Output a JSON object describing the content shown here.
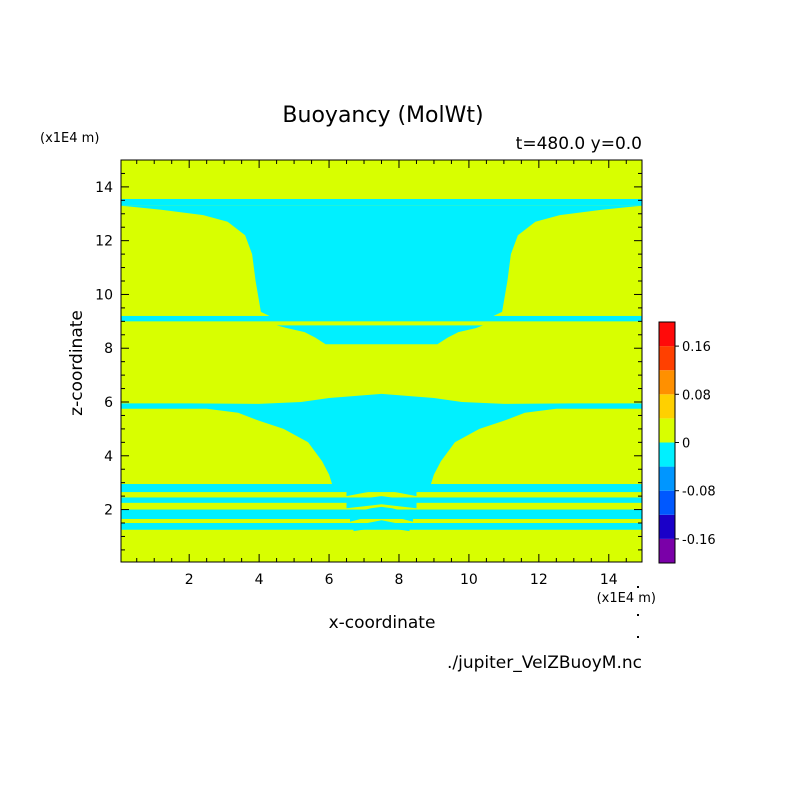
{
  "chart_data": {
    "type": "heatmap",
    "title": "Buoyancy (MolWt)",
    "subtitle": "t=480.0 y=0.0",
    "xlabel": "x-coordinate",
    "ylabel": "z-coordinate",
    "x_unit": "(x1E4 m)",
    "y_unit": "(x1E4 m)",
    "xlim": [
      0.05,
      14.95
    ],
    "ylim": [
      0.05,
      15.0
    ],
    "x_ticks": [
      2,
      4,
      6,
      8,
      10,
      12,
      14
    ],
    "y_ticks": [
      2,
      4,
      6,
      8,
      10,
      12,
      14
    ],
    "source_file": "./jupiter_VelZBuoyM.nc",
    "colorbar": {
      "levels": [
        -0.2,
        -0.16,
        -0.12,
        -0.08,
        -0.04,
        0,
        0.04,
        0.08,
        0.12,
        0.16,
        0.2
      ],
      "colors": [
        "#7a00a8",
        "#1a00c8",
        "#0058ff",
        "#0096ff",
        "#00f0ff",
        "#d8ff00",
        "#ffd000",
        "#ff9000",
        "#ff4000",
        "#ff0a0a",
        "#ffb0b0"
      ],
      "tick_labels": [
        {
          "value": -0.16,
          "label": "-0.16"
        },
        {
          "value": -0.08,
          "label": "-0.08"
        },
        {
          "value": 0,
          "label": "0"
        },
        {
          "value": 0.08,
          "label": "0.08"
        },
        {
          "value": 0.16,
          "label": "0.16"
        }
      ]
    },
    "field": {
      "background_class": "0 to 0.04",
      "background_color": "#d8ff00",
      "negative_class": "-0.04 to 0",
      "negative_color": "#00f0ff",
      "negative_regions": [
        {
          "kind": "band",
          "z": [
            13.3,
            13.55
          ]
        },
        {
          "kind": "polygon",
          "points": [
            [
              0.05,
              13.3
            ],
            [
              1.2,
              13.15
            ],
            [
              2.4,
              12.95
            ],
            [
              3.1,
              12.7
            ],
            [
              3.6,
              12.2
            ],
            [
              3.8,
              11.5
            ],
            [
              3.9,
              10.5
            ],
            [
              4.05,
              9.35
            ],
            [
              4.3,
              9.2
            ],
            [
              10.7,
              9.2
            ],
            [
              10.95,
              9.35
            ],
            [
              11.1,
              10.5
            ],
            [
              11.2,
              11.5
            ],
            [
              11.4,
              12.2
            ],
            [
              11.9,
              12.7
            ],
            [
              12.6,
              12.95
            ],
            [
              13.8,
              13.15
            ],
            [
              14.95,
              13.3
            ]
          ]
        },
        {
          "kind": "band",
          "z": [
            9.0,
            9.2
          ]
        },
        {
          "kind": "polygon",
          "points": [
            [
              4.5,
              8.85
            ],
            [
              10.4,
              8.85
            ],
            [
              10.2,
              8.75
            ],
            [
              9.7,
              8.6
            ],
            [
              9.4,
              8.4
            ],
            [
              9.1,
              8.15
            ],
            [
              5.9,
              8.15
            ],
            [
              5.6,
              8.4
            ],
            [
              5.3,
              8.6
            ],
            [
              4.8,
              8.75
            ]
          ]
        },
        {
          "kind": "polygon",
          "points": [
            [
              0.05,
              5.95
            ],
            [
              2.0,
              5.95
            ],
            [
              4.0,
              5.93
            ],
            [
              5.2,
              6.0
            ],
            [
              6.0,
              6.15
            ],
            [
              7.5,
              6.3
            ],
            [
              9.0,
              6.15
            ],
            [
              9.8,
              6.0
            ],
            [
              11.0,
              5.93
            ],
            [
              13.0,
              5.95
            ],
            [
              14.95,
              5.95
            ],
            [
              14.95,
              5.75
            ],
            [
              12.5,
              5.75
            ],
            [
              11.6,
              5.6
            ],
            [
              11.0,
              5.3
            ],
            [
              10.3,
              5.0
            ],
            [
              9.6,
              4.5
            ],
            [
              9.2,
              3.8
            ],
            [
              9.0,
              3.3
            ],
            [
              8.9,
              2.9
            ],
            [
              6.1,
              2.9
            ],
            [
              6.0,
              3.3
            ],
            [
              5.8,
              3.8
            ],
            [
              5.4,
              4.5
            ],
            [
              4.7,
              5.0
            ],
            [
              4.0,
              5.3
            ],
            [
              3.4,
              5.6
            ],
            [
              2.5,
              5.75
            ],
            [
              0.05,
              5.75
            ]
          ]
        },
        {
          "kind": "band",
          "z": [
            2.65,
            2.95
          ]
        },
        {
          "kind": "band",
          "z": [
            2.25,
            2.45
          ]
        },
        {
          "kind": "band",
          "z": [
            1.65,
            2.0
          ]
        },
        {
          "kind": "band",
          "z": [
            1.25,
            1.5
          ]
        },
        {
          "kind": "polygon",
          "points": [
            [
              6.5,
              2.7
            ],
            [
              7.1,
              2.85
            ],
            [
              7.5,
              2.9
            ],
            [
              7.9,
              2.85
            ],
            [
              8.5,
              2.7
            ],
            [
              8.5,
              2.5
            ],
            [
              7.9,
              2.65
            ],
            [
              7.5,
              2.7
            ],
            [
              7.1,
              2.65
            ],
            [
              6.5,
              2.5
            ]
          ]
        },
        {
          "kind": "polygon",
          "points": [
            [
              6.5,
              2.3
            ],
            [
              7.2,
              2.45
            ],
            [
              7.5,
              2.5
            ],
            [
              7.8,
              2.45
            ],
            [
              8.5,
              2.3
            ],
            [
              8.5,
              2.05
            ],
            [
              7.8,
              2.15
            ],
            [
              7.5,
              2.2
            ],
            [
              7.2,
              2.15
            ],
            [
              6.5,
              2.05
            ]
          ]
        },
        {
          "kind": "polygon",
          "points": [
            [
              6.6,
              1.85
            ],
            [
              7.2,
              2.05
            ],
            [
              7.5,
              2.1
            ],
            [
              7.8,
              2.05
            ],
            [
              8.4,
              1.85
            ],
            [
              8.4,
              1.55
            ],
            [
              7.8,
              1.75
            ],
            [
              7.5,
              1.8
            ],
            [
              7.2,
              1.75
            ],
            [
              6.6,
              1.55
            ]
          ]
        },
        {
          "kind": "polygon",
          "points": [
            [
              6.7,
              1.4
            ],
            [
              7.5,
              1.6
            ],
            [
              8.3,
              1.4
            ],
            [
              8.3,
              1.2
            ],
            [
              7.5,
              1.35
            ],
            [
              6.7,
              1.2
            ]
          ]
        }
      ]
    }
  }
}
